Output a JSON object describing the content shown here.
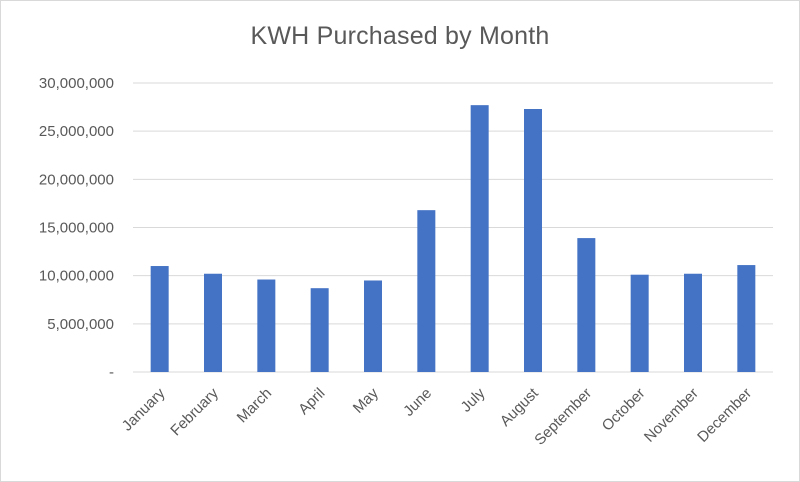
{
  "chart_data": {
    "type": "bar",
    "title": "KWH Purchased by Month",
    "xlabel": "",
    "ylabel": "",
    "categories": [
      "January",
      "February",
      "March",
      "April",
      "May",
      "June",
      "July",
      "August",
      "September",
      "October",
      "November",
      "December"
    ],
    "values": [
      11000000,
      10200000,
      9600000,
      8700000,
      9500000,
      16800000,
      27700000,
      27300000,
      13900000,
      10100000,
      10200000,
      11100000
    ],
    "ylim": [
      0,
      30000000
    ],
    "y_ticks": [
      {
        "value": 0,
        "label": "-"
      },
      {
        "value": 5000000,
        "label": "5,000,000"
      },
      {
        "value": 10000000,
        "label": "10,000,000"
      },
      {
        "value": 15000000,
        "label": "15,000,000"
      },
      {
        "value": 20000000,
        "label": "20,000,000"
      },
      {
        "value": 25000000,
        "label": "25,000,000"
      },
      {
        "value": 30000000,
        "label": "30,000,000"
      }
    ],
    "grid": true,
    "legend": "none",
    "bar_color": "#4472c4",
    "grid_color": "#d9d9d9",
    "text_color": "#595959"
  }
}
